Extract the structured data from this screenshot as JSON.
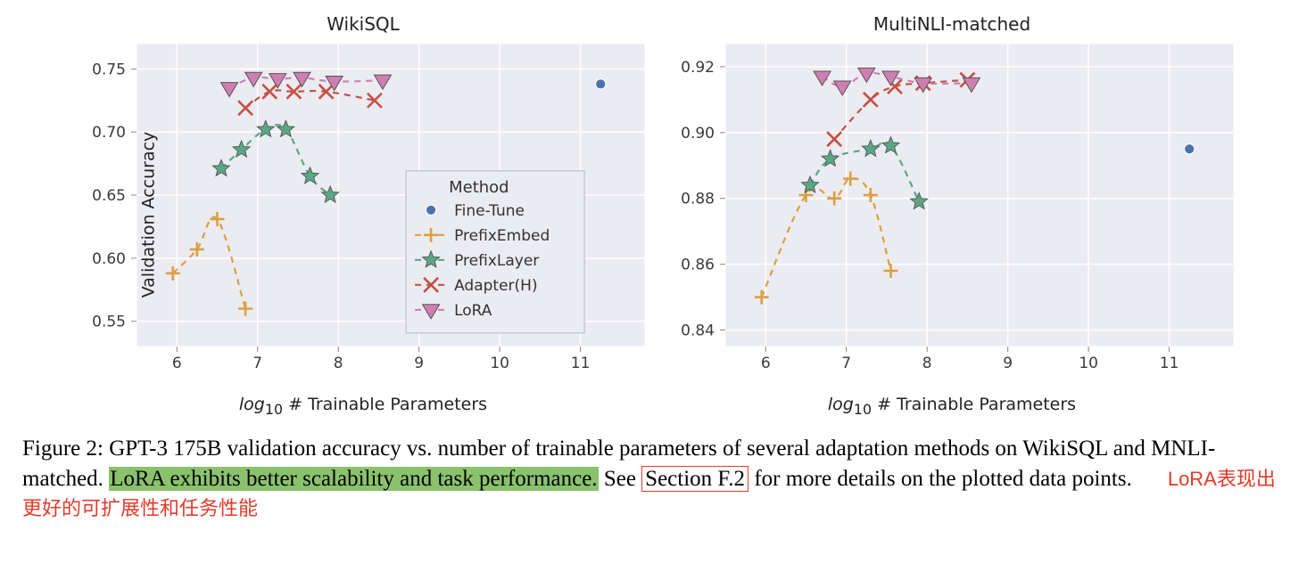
{
  "chart_common": {
    "bg_color": "#ebebf2",
    "grid_color": "#ffffff",
    "border_color": "#ffffff",
    "axis_text_color": "#3b3b3b",
    "tick_fontsize": 17,
    "title_fontsize": 20,
    "label_fontsize": 19,
    "x_label_html": "<span class='log-sub'>log</span><sub>10</sub> # Trainable Parameters",
    "x_lim": [
      5.5,
      11.8
    ],
    "x_ticks": [
      6,
      7,
      8,
      9,
      10,
      11
    ],
    "line_dash": "7,6",
    "line_width": 2.2,
    "marker_size": 8,
    "legend": {
      "title": "Method",
      "bg": "#ebebf2",
      "border": "#c9c9d1",
      "items": [
        {
          "label": "Fine-Tune",
          "marker": "circle",
          "color": "#4c72b0",
          "line": false
        },
        {
          "label": "PrefixEmbed",
          "marker": "plus",
          "color": "#dd9f40",
          "line": true
        },
        {
          "label": "PrefixLayer",
          "marker": "star",
          "color": "#5aa786",
          "line": true
        },
        {
          "label": "Adapter(H)",
          "marker": "x",
          "color": "#c65043",
          "line": true
        },
        {
          "label": "LoRA",
          "marker": "triangle-down",
          "color": "#cf7fb1",
          "line": true
        }
      ]
    }
  },
  "panels": [
    {
      "title": "WikiSQL",
      "y_label": "Validation Accuracy",
      "show_y_label": true,
      "show_legend": true,
      "y_lim": [
        0.53,
        0.77
      ],
      "y_ticks": [
        0.55,
        0.6,
        0.65,
        0.7,
        0.75
      ],
      "y_tick_labels": [
        "0.55",
        "0.60",
        "0.65",
        "0.70",
        "0.75"
      ],
      "series": [
        {
          "name": "Fine-Tune",
          "color": "#4c72b0",
          "marker": "circle",
          "line": false,
          "points": [
            [
              11.25,
              0.738
            ]
          ]
        },
        {
          "name": "PrefixEmbed",
          "color": "#dd9f40",
          "marker": "plus",
          "line": true,
          "points": [
            [
              5.95,
              0.588
            ],
            [
              6.25,
              0.607
            ],
            [
              6.5,
              0.631
            ],
            [
              6.85,
              0.56
            ]
          ]
        },
        {
          "name": "PrefixLayer",
          "color": "#5aa786",
          "marker": "star",
          "line": true,
          "points": [
            [
              6.55,
              0.671
            ],
            [
              6.8,
              0.686
            ],
            [
              7.1,
              0.702
            ],
            [
              7.35,
              0.702
            ],
            [
              7.65,
              0.665
            ],
            [
              7.9,
              0.65
            ]
          ]
        },
        {
          "name": "Adapter(H)",
          "color": "#c65043",
          "marker": "x",
          "line": true,
          "points": [
            [
              6.85,
              0.719
            ],
            [
              7.15,
              0.732
            ],
            [
              7.45,
              0.732
            ],
            [
              7.85,
              0.732
            ],
            [
              8.45,
              0.725
            ]
          ]
        },
        {
          "name": "LoRA",
          "color": "#cf7fb1",
          "marker": "triangle-down",
          "line": true,
          "points": [
            [
              6.65,
              0.735
            ],
            [
              6.95,
              0.743
            ],
            [
              7.25,
              0.742
            ],
            [
              7.55,
              0.743
            ],
            [
              7.95,
              0.74
            ],
            [
              8.55,
              0.741
            ]
          ]
        }
      ]
    },
    {
      "title": "MultiNLI-matched",
      "y_label": "",
      "show_y_label": false,
      "show_legend": false,
      "y_lim": [
        0.835,
        0.927
      ],
      "y_ticks": [
        0.84,
        0.86,
        0.88,
        0.9,
        0.92
      ],
      "y_tick_labels": [
        "0.84",
        "0.86",
        "0.88",
        "0.90",
        "0.92"
      ],
      "series": [
        {
          "name": "Fine-Tune",
          "color": "#4c72b0",
          "marker": "circle",
          "line": false,
          "points": [
            [
              11.25,
              0.895
            ]
          ]
        },
        {
          "name": "PrefixEmbed",
          "color": "#dd9f40",
          "marker": "plus",
          "line": true,
          "points": [
            [
              5.95,
              0.85
            ],
            [
              6.5,
              0.881
            ],
            [
              6.85,
              0.88
            ],
            [
              7.05,
              0.886
            ],
            [
              7.3,
              0.881
            ],
            [
              7.55,
              0.858
            ]
          ]
        },
        {
          "name": "PrefixLayer",
          "color": "#5aa786",
          "marker": "star",
          "line": true,
          "points": [
            [
              6.55,
              0.884
            ],
            [
              6.8,
              0.892
            ],
            [
              7.3,
              0.895
            ],
            [
              7.55,
              0.896
            ],
            [
              7.9,
              0.879
            ]
          ]
        },
        {
          "name": "Adapter(H)",
          "color": "#c65043",
          "marker": "x",
          "line": true,
          "points": [
            [
              6.85,
              0.898
            ],
            [
              7.3,
              0.91
            ],
            [
              7.6,
              0.914
            ],
            [
              7.95,
              0.915
            ],
            [
              8.5,
              0.916
            ]
          ]
        },
        {
          "name": "LoRA",
          "color": "#cf7fb1",
          "marker": "triangle-down",
          "line": true,
          "points": [
            [
              6.7,
              0.917
            ],
            [
              6.95,
              0.914
            ],
            [
              7.25,
              0.918
            ],
            [
              7.55,
              0.917
            ],
            [
              7.95,
              0.915
            ],
            [
              8.55,
              0.915
            ]
          ]
        }
      ]
    }
  ],
  "caption": {
    "prefix": "Figure 2: GPT-3 175B validation accuracy vs. number of trainable parameters of several adaptation methods on WikiSQL and MNLI-matched. ",
    "highlight": "LoRA exhibits better scalability and task performance.",
    "after_hl": " See ",
    "boxed": "Section F.2",
    "suffix": " for more details on the plotted data points.",
    "red_annotation": "LoRA表现出更好的可扩展性和任务性能"
  }
}
